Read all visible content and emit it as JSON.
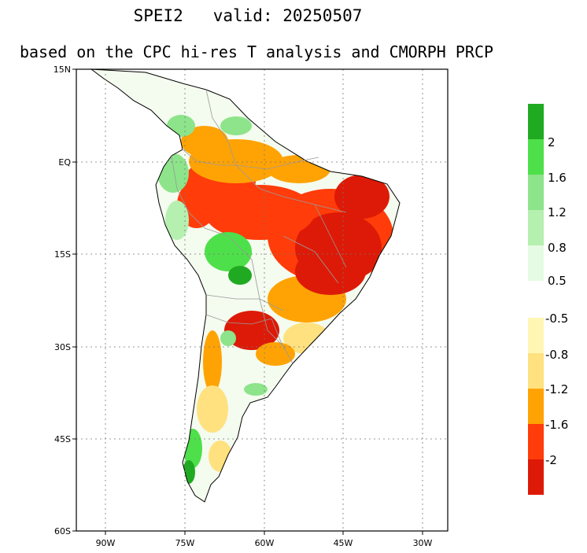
{
  "title_line1": "SPEI2   valid: 20250507",
  "title_line2": "based on the CPC hi-res T analysis and CMORPH PRCP",
  "map": {
    "lat_ticks": [
      "15N",
      "EQ",
      "15S",
      "30S",
      "45S",
      "60S"
    ],
    "lon_ticks": [
      "90W",
      "75W",
      "60W",
      "45W",
      "30W"
    ],
    "lon_range": [
      -96,
      -26
    ],
    "lat_range": [
      -60,
      15
    ],
    "grid": "dotted"
  },
  "colorbar": {
    "wet": {
      "labels": [
        "2",
        "1.6",
        "1.2",
        "0.8",
        "0.5"
      ],
      "colors": [
        "#1faa22",
        "#4ee04a",
        "#8de48a",
        "#b5f0b0",
        "#e6fbe4"
      ]
    },
    "dry": {
      "labels": [
        "-0.5",
        "-0.8",
        "-1.2",
        "-1.6",
        "-2"
      ],
      "colors": [
        "#fff6b4",
        "#ffe17f",
        "#ffa304",
        "#ff3c0a",
        "#dd1a07"
      ]
    }
  }
}
